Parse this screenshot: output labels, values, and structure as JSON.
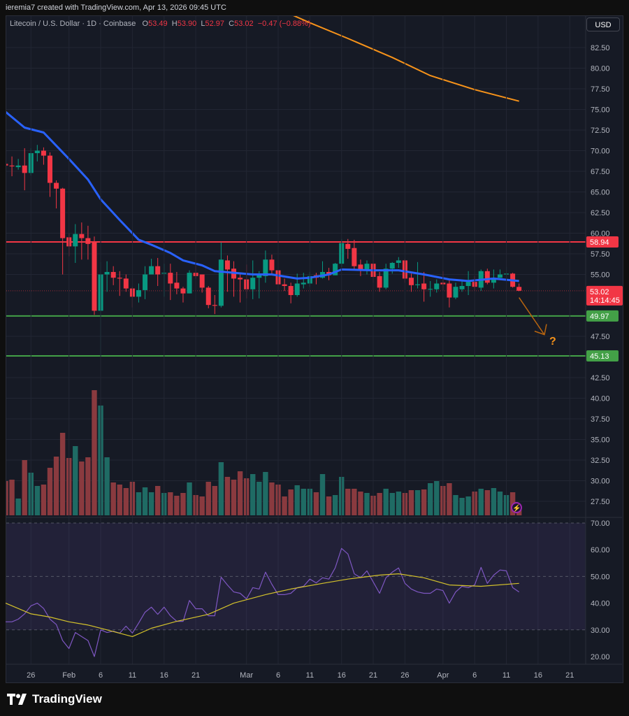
{
  "credit": "ieremia7 created with TradingView.com, Apr 13, 2026 09:45 UTC",
  "legend": {
    "symbol": "Litecoin / U.S. Dollar · 1D · Coinbase",
    "open_label": "O",
    "open": "53.49",
    "high_label": "H",
    "high": "53.90",
    "low_label": "L",
    "low": "52.97",
    "close_label": "C",
    "close": "53.02",
    "change": "−0.47 (−0.88%)"
  },
  "currency_button": "USD",
  "brand": "TradingView",
  "annotation": {
    "text": "?",
    "arrow_from": [
      "2026-04-13",
      52.2
    ],
    "arrow_to": [
      "2026-04-17",
      47.7
    ]
  },
  "colors": {
    "up": "#089981",
    "down": "#f23645",
    "vol_up": "#1f6b64",
    "vol_down": "#8a3a3f",
    "sma": "#2962ff",
    "ma200": "#f7931a",
    "resistance": "#f23645",
    "support": "#43a047",
    "rsi": "#7e57c2",
    "rsi_ma": "#d4c22b"
  },
  "chart_data": {
    "type": "candlestick",
    "price_axis": {
      "ticks": [
        "82.50",
        "80.00",
        "77.50",
        "75.00",
        "72.50",
        "70.00",
        "67.50",
        "65.00",
        "62.50",
        "60.00",
        "57.50",
        "55.00",
        "47.50",
        "42.50",
        "40.00",
        "37.50",
        "35.00",
        "32.50",
        "30.00",
        "27.50"
      ]
    },
    "time_axis": {
      "ticks": [
        [
          "2026-01-26",
          "26"
        ],
        [
          "2026-02-01",
          "Feb"
        ],
        [
          "2026-02-06",
          "6"
        ],
        [
          "2026-02-11",
          "11"
        ],
        [
          "2026-02-16",
          "16"
        ],
        [
          "2026-02-21",
          "21"
        ],
        [
          "2026-03-01",
          "Mar"
        ],
        [
          "2026-03-06",
          "6"
        ],
        [
          "2026-03-11",
          "11"
        ],
        [
          "2026-03-16",
          "16"
        ],
        [
          "2026-03-21",
          "21"
        ],
        [
          "2026-03-26",
          "26"
        ],
        [
          "2026-04-01",
          "Apr"
        ],
        [
          "2026-04-06",
          "6"
        ],
        [
          "2026-04-11",
          "11"
        ],
        [
          "2026-04-16",
          "16"
        ],
        [
          "2026-04-21",
          "21"
        ]
      ]
    },
    "levels": [
      {
        "price": 58.94,
        "label": "58.94",
        "kind": "resistance"
      },
      {
        "price": 49.97,
        "label": "49.97",
        "kind": "support"
      },
      {
        "price": 45.13,
        "label": "45.13",
        "kind": "support"
      }
    ],
    "last_price": {
      "price": 53.02,
      "label": "53.02",
      "countdown": "14:14:45"
    },
    "candles_columns": [
      "date",
      "open",
      "high",
      "low",
      "close",
      "volume_relative"
    ],
    "candles": [
      [
        "2026-01-22",
        68.4,
        69.6,
        67.2,
        68.2,
        49
      ],
      [
        "2026-01-23",
        68.2,
        69.3,
        66.9,
        68.1,
        51
      ],
      [
        "2026-01-24",
        68.0,
        69.0,
        67.7,
        68.2,
        24
      ],
      [
        "2026-01-25",
        68.2,
        70.3,
        65.2,
        67.3,
        79
      ],
      [
        "2026-01-26",
        67.3,
        70.3,
        67.0,
        69.7,
        61
      ],
      [
        "2026-01-27",
        69.7,
        70.7,
        68.7,
        70.0,
        42
      ],
      [
        "2026-01-28",
        70.0,
        70.4,
        68.3,
        69.4,
        44
      ],
      [
        "2026-01-29",
        69.4,
        69.8,
        64.4,
        66.1,
        68
      ],
      [
        "2026-01-30",
        66.1,
        66.4,
        63.0,
        65.4,
        84
      ],
      [
        "2026-01-31",
        65.4,
        65.5,
        55.0,
        59.4,
        118
      ],
      [
        "2026-02-01",
        59.5,
        60.0,
        57.2,
        58.4,
        82
      ],
      [
        "2026-02-02",
        58.4,
        61.1,
        56.4,
        59.9,
        99
      ],
      [
        "2026-02-03",
        59.9,
        61.3,
        56.8,
        59.4,
        77
      ],
      [
        "2026-02-04",
        59.4,
        60.9,
        56.8,
        58.7,
        83
      ],
      [
        "2026-02-05",
        59.0,
        59.6,
        50.1,
        50.6,
        179
      ],
      [
        "2026-02-06",
        50.6,
        56.5,
        45.1,
        55.0,
        157
      ],
      [
        "2026-02-07",
        55.0,
        56.6,
        52.9,
        55.3,
        83
      ],
      [
        "2026-02-08",
        55.3,
        56.0,
        53.7,
        54.6,
        47
      ],
      [
        "2026-02-09",
        54.6,
        55.4,
        52.4,
        54.5,
        44
      ],
      [
        "2026-02-10",
        54.5,
        55.0,
        52.9,
        53.3,
        39
      ],
      [
        "2026-02-11",
        53.3,
        53.5,
        51.0,
        52.3,
        48
      ],
      [
        "2026-02-12",
        52.3,
        53.9,
        51.6,
        53.1,
        33
      ],
      [
        "2026-02-13",
        53.1,
        56.0,
        52.0,
        55.0,
        40
      ],
      [
        "2026-02-14",
        55.0,
        56.9,
        55.0,
        56.0,
        33
      ],
      [
        "2026-02-15",
        56.0,
        57.0,
        53.6,
        55.0,
        42
      ],
      [
        "2026-02-16",
        55.1,
        56.3,
        52.3,
        55.2,
        32
      ],
      [
        "2026-02-17",
        55.2,
        56.3,
        51.9,
        53.9,
        33
      ],
      [
        "2026-02-18",
        54.0,
        55.3,
        52.6,
        53.3,
        28
      ],
      [
        "2026-02-19",
        53.3,
        53.5,
        51.6,
        52.7,
        32
      ],
      [
        "2026-02-20",
        52.7,
        55.5,
        52.7,
        55.2,
        47
      ],
      [
        "2026-02-21",
        55.2,
        56.1,
        54.5,
        54.8,
        29
      ],
      [
        "2026-02-22",
        55.0,
        55.0,
        52.8,
        53.4,
        27
      ],
      [
        "2026-02-23",
        53.4,
        53.6,
        50.9,
        51.3,
        48
      ],
      [
        "2026-02-24",
        51.3,
        52.5,
        50.2,
        51.2,
        42
      ],
      [
        "2026-02-25",
        51.2,
        58.9,
        51.0,
        56.8,
        76
      ],
      [
        "2026-02-26",
        56.7,
        57.3,
        52.9,
        55.6,
        55
      ],
      [
        "2026-02-27",
        55.7,
        56.6,
        52.3,
        54.5,
        51
      ],
      [
        "2026-02-28",
        54.6,
        55.0,
        51.6,
        54.4,
        63
      ],
      [
        "2026-03-01",
        54.4,
        56.2,
        52.1,
        53.2,
        53
      ],
      [
        "2026-03-02",
        53.2,
        56.7,
        52.0,
        54.6,
        59
      ],
      [
        "2026-03-03",
        54.6,
        55.4,
        52.1,
        54.9,
        48
      ],
      [
        "2026-03-04",
        54.8,
        57.9,
        54.0,
        56.8,
        62
      ],
      [
        "2026-03-05",
        56.8,
        57.4,
        54.9,
        55.5,
        47
      ],
      [
        "2026-03-06",
        55.5,
        56.0,
        52.9,
        53.8,
        44
      ],
      [
        "2026-03-07",
        53.8,
        54.5,
        53.0,
        53.6,
        27
      ],
      [
        "2026-03-08",
        53.6,
        54.0,
        51.5,
        52.5,
        37
      ],
      [
        "2026-03-09",
        52.5,
        55.1,
        52.3,
        53.9,
        43
      ],
      [
        "2026-03-10",
        53.8,
        55.2,
        53.3,
        54.0,
        38
      ],
      [
        "2026-03-11",
        53.9,
        55.3,
        53.5,
        54.8,
        38
      ],
      [
        "2026-03-12",
        54.9,
        55.2,
        53.8,
        54.6,
        33
      ],
      [
        "2026-03-13",
        54.6,
        56.6,
        54.5,
        55.3,
        59
      ],
      [
        "2026-03-14",
        55.3,
        55.8,
        54.3,
        54.9,
        27
      ],
      [
        "2026-03-15",
        54.9,
        56.4,
        54.9,
        56.3,
        29
      ],
      [
        "2026-03-16",
        56.3,
        59.3,
        55.9,
        58.8,
        55
      ],
      [
        "2026-03-17",
        58.7,
        59.3,
        56.9,
        58.1,
        38
      ],
      [
        "2026-03-18",
        58.2,
        59.2,
        55.5,
        56.0,
        38
      ],
      [
        "2026-03-19",
        56.2,
        56.8,
        54.8,
        55.5,
        34
      ],
      [
        "2026-03-20",
        55.5,
        56.7,
        55.0,
        56.3,
        32
      ],
      [
        "2026-03-21",
        56.3,
        57.6,
        54.0,
        54.7,
        28
      ],
      [
        "2026-03-22",
        54.8,
        55.3,
        52.9,
        53.4,
        32
      ],
      [
        "2026-03-23",
        53.4,
        56.3,
        53.2,
        55.7,
        38
      ],
      [
        "2026-03-24",
        55.7,
        56.5,
        55.1,
        56.4,
        32
      ],
      [
        "2026-03-25",
        56.4,
        57.1,
        55.8,
        56.7,
        34
      ],
      [
        "2026-03-26",
        56.7,
        56.9,
        54.0,
        54.5,
        32
      ],
      [
        "2026-03-27",
        54.6,
        55.1,
        52.9,
        53.7,
        36
      ],
      [
        "2026-03-28",
        53.7,
        56.5,
        53.3,
        53.8,
        36
      ],
      [
        "2026-03-29",
        53.9,
        55.3,
        51.7,
        53.2,
        37
      ],
      [
        "2026-03-30",
        53.2,
        54.2,
        52.3,
        53.25,
        46
      ],
      [
        "2026-03-31",
        53.2,
        54.4,
        52.8,
        53.9,
        49
      ],
      [
        "2026-04-01",
        54.0,
        55.4,
        53.0,
        53.8,
        42
      ],
      [
        "2026-04-02",
        53.9,
        54.3,
        51.0,
        52.2,
        46
      ],
      [
        "2026-04-03",
        52.2,
        54.0,
        52.0,
        53.5,
        29
      ],
      [
        "2026-04-04",
        53.2,
        54.2,
        52.9,
        53.6,
        25
      ],
      [
        "2026-04-05",
        53.6,
        55.4,
        52.5,
        54.1,
        27
      ],
      [
        "2026-04-06",
        54.1,
        54.8,
        53.0,
        53.5,
        34
      ],
      [
        "2026-04-07",
        53.4,
        55.6,
        53.0,
        55.4,
        38
      ],
      [
        "2026-04-08",
        55.4,
        55.7,
        53.8,
        54.0,
        36
      ],
      [
        "2026-04-09",
        54.0,
        55.6,
        53.3,
        54.6,
        39
      ],
      [
        "2026-04-10",
        54.6,
        55.6,
        54.6,
        55.0,
        34
      ],
      [
        "2026-04-11",
        55.0,
        55.9,
        54.2,
        55.1,
        29
      ],
      [
        "2026-04-12",
        55.1,
        55.2,
        53.4,
        53.5,
        33
      ],
      [
        "2026-04-13",
        53.49,
        53.9,
        52.97,
        53.02,
        12
      ]
    ],
    "sma": [
      [
        "2026-01-22",
        74.7
      ],
      [
        "2026-01-25",
        72.8
      ],
      [
        "2026-01-28",
        72.2
      ],
      [
        "2026-01-30",
        70.6
      ],
      [
        "2026-02-01",
        69.0
      ],
      [
        "2026-02-04",
        66.5
      ],
      [
        "2026-02-06",
        64.1
      ],
      [
        "2026-02-09",
        61.6
      ],
      [
        "2026-02-12",
        59.2
      ],
      [
        "2026-02-14",
        58.6
      ],
      [
        "2026-02-17",
        57.6
      ],
      [
        "2026-02-19",
        56.7
      ],
      [
        "2026-02-22",
        56.1
      ],
      [
        "2026-02-24",
        55.4
      ],
      [
        "2026-02-27",
        55.2
      ],
      [
        "2026-03-02",
        55.0
      ],
      [
        "2026-03-05",
        55.0
      ],
      [
        "2026-03-09",
        54.5
      ],
      [
        "2026-03-11",
        54.6
      ],
      [
        "2026-03-14",
        55.0
      ],
      [
        "2026-03-16",
        55.6
      ],
      [
        "2026-03-21",
        55.5
      ],
      [
        "2026-03-25",
        55.5
      ],
      [
        "2026-03-29",
        55.0
      ],
      [
        "2026-04-02",
        54.4
      ],
      [
        "2026-04-05",
        54.2
      ],
      [
        "2026-04-09",
        54.5
      ],
      [
        "2026-04-13",
        54.2
      ]
    ],
    "ma200": [
      [
        "2026-03-06",
        87.2
      ],
      [
        "2026-03-11",
        85.5
      ],
      [
        "2026-03-17",
        83.6
      ],
      [
        "2026-03-24",
        81.3
      ],
      [
        "2026-03-30",
        79.1
      ],
      [
        "2026-04-06",
        77.4
      ],
      [
        "2026-04-13",
        76.0
      ]
    ],
    "rsi": {
      "ticks": [
        "70.00",
        "60.00",
        "50.00",
        "40.00",
        "30.00",
        "20.00"
      ],
      "upper": 70,
      "middle": 50,
      "lower": 30,
      "values": [
        33,
        33,
        34,
        36,
        39,
        40,
        38,
        34,
        32,
        26,
        23,
        29,
        27.5,
        26,
        20,
        30,
        29,
        29.5,
        28.8,
        31.4,
        28.8,
        32.6,
        36.6,
        38.5,
        35.8,
        38.5,
        35.3,
        33.2,
        33.2,
        41,
        37.9,
        37.9,
        35.3,
        35.3,
        49.7,
        46.8,
        44.2,
        43.7,
        41.6,
        45.8,
        45.3,
        51.6,
        47.1,
        43.2,
        43.2,
        43.7,
        45.8,
        46.3,
        49,
        47.6,
        49.5,
        49,
        53.2,
        60.5,
        58.4,
        51,
        49.5,
        52.1,
        47.9,
        43.7,
        49.5,
        51.6,
        53.2,
        47.4,
        45.3,
        44.2,
        43.7,
        43.7,
        45.3,
        44.7,
        40,
        44.2,
        46.3,
        45.8,
        46.8,
        53.4,
        47.4,
        50.5,
        52.4,
        52.1,
        45.8,
        44.2
      ],
      "ma": [
        [
          "2026-01-22",
          40
        ],
        [
          "2026-01-26",
          36
        ],
        [
          "2026-01-29",
          34.8
        ],
        [
          "2026-02-01",
          33
        ],
        [
          "2026-02-04",
          31.8
        ],
        [
          "2026-02-07",
          30
        ],
        [
          "2026-02-11",
          27.5
        ],
        [
          "2026-02-14",
          30.6
        ],
        [
          "2026-02-18",
          33.2
        ],
        [
          "2026-02-23",
          35.8
        ],
        [
          "2026-02-27",
          40
        ],
        [
          "2026-03-04",
          43.2
        ],
        [
          "2026-03-08",
          45.3
        ],
        [
          "2026-03-13",
          47.4
        ],
        [
          "2026-03-17",
          49
        ],
        [
          "2026-03-22",
          50.5
        ],
        [
          "2026-03-25",
          51
        ],
        [
          "2026-03-29",
          49.5
        ],
        [
          "2026-04-02",
          46.8
        ],
        [
          "2026-04-07",
          46.3
        ],
        [
          "2026-04-13",
          47.4
        ]
      ]
    }
  }
}
